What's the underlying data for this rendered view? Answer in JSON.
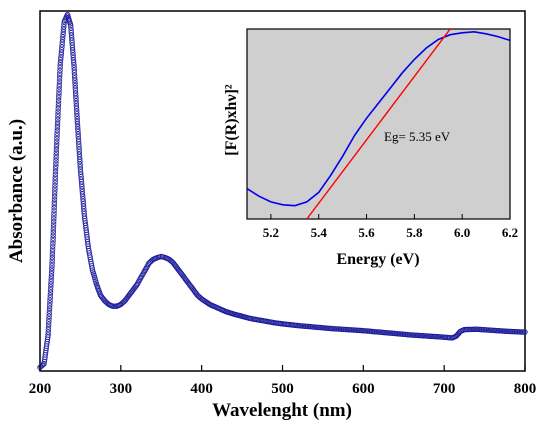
{
  "chart_data": [
    {
      "type": "scatter",
      "xlabel": "Wavelenght (nm)",
      "ylabel": "Absorbance (a.u.)",
      "xlim": [
        200,
        800
      ],
      "ylim": [
        0,
        1
      ],
      "x_ticks": [
        200,
        300,
        400,
        500,
        600,
        700,
        800
      ],
      "y_ticks_labeled": false,
      "grid": false,
      "marker": "open-circle",
      "series": [
        {
          "color": "#1f1f9c",
          "points": [
            [
              200,
              0.01
            ],
            [
              205,
              0.02
            ],
            [
              210,
              0.1
            ],
            [
              215,
              0.3
            ],
            [
              220,
              0.6
            ],
            [
              225,
              0.85
            ],
            [
              230,
              0.97
            ],
            [
              234,
              0.99
            ],
            [
              238,
              0.96
            ],
            [
              242,
              0.85
            ],
            [
              246,
              0.7
            ],
            [
              250,
              0.56
            ],
            [
              255,
              0.43
            ],
            [
              260,
              0.34
            ],
            [
              265,
              0.28
            ],
            [
              270,
              0.24
            ],
            [
              275,
              0.21
            ],
            [
              280,
              0.195
            ],
            [
              285,
              0.185
            ],
            [
              290,
              0.18
            ],
            [
              295,
              0.18
            ],
            [
              300,
              0.185
            ],
            [
              305,
              0.195
            ],
            [
              310,
              0.21
            ],
            [
              315,
              0.225
            ],
            [
              320,
              0.24
            ],
            [
              325,
              0.26
            ],
            [
              330,
              0.28
            ],
            [
              335,
              0.3
            ],
            [
              340,
              0.31
            ],
            [
              345,
              0.315
            ],
            [
              350,
              0.318
            ],
            [
              355,
              0.315
            ],
            [
              360,
              0.31
            ],
            [
              365,
              0.3
            ],
            [
              370,
              0.285
            ],
            [
              375,
              0.27
            ],
            [
              380,
              0.255
            ],
            [
              385,
              0.24
            ],
            [
              390,
              0.225
            ],
            [
              395,
              0.21
            ],
            [
              400,
              0.2
            ],
            [
              410,
              0.185
            ],
            [
              420,
              0.175
            ],
            [
              430,
              0.165
            ],
            [
              440,
              0.158
            ],
            [
              450,
              0.152
            ],
            [
              460,
              0.146
            ],
            [
              470,
              0.142
            ],
            [
              480,
              0.138
            ],
            [
              490,
              0.134
            ],
            [
              500,
              0.131
            ],
            [
              520,
              0.126
            ],
            [
              540,
              0.122
            ],
            [
              560,
              0.118
            ],
            [
              580,
              0.115
            ],
            [
              600,
              0.112
            ],
            [
              620,
              0.108
            ],
            [
              640,
              0.104
            ],
            [
              660,
              0.1
            ],
            [
              680,
              0.097
            ],
            [
              700,
              0.094
            ],
            [
              710,
              0.092
            ],
            [
              715,
              0.097
            ],
            [
              720,
              0.11
            ],
            [
              725,
              0.115
            ],
            [
              740,
              0.116
            ],
            [
              760,
              0.113
            ],
            [
              780,
              0.11
            ],
            [
              800,
              0.108
            ]
          ]
        }
      ]
    },
    {
      "type": "line",
      "xlabel": "Energy (eV)",
      "ylabel": "[F(R)xhν]²",
      "xlim": [
        5.1,
        6.2
      ],
      "ylim": [
        0,
        1
      ],
      "x_ticks": [
        5.2,
        5.4,
        5.6,
        5.8,
        6.0,
        6.2
      ],
      "y_ticks_labeled": false,
      "background": "#cfcfcf",
      "annotation": "Eg= 5.35 eV",
      "series": [
        {
          "color": "#0000ee",
          "x": [
            5.1,
            5.15,
            5.2,
            5.25,
            5.3,
            5.35,
            5.4,
            5.45,
            5.5,
            5.55,
            5.6,
            5.65,
            5.7,
            5.75,
            5.8,
            5.85,
            5.9,
            5.95,
            6.0,
            6.05,
            6.1,
            6.15,
            6.2
          ],
          "y": [
            0.16,
            0.12,
            0.09,
            0.075,
            0.07,
            0.09,
            0.14,
            0.23,
            0.33,
            0.44,
            0.53,
            0.61,
            0.69,
            0.77,
            0.84,
            0.9,
            0.945,
            0.97,
            0.98,
            0.985,
            0.975,
            0.96,
            0.94
          ]
        },
        {
          "color": "#ff0000",
          "x": [
            5.35,
            5.95
          ],
          "y": [
            0.0,
            1.0
          ]
        }
      ]
    }
  ]
}
